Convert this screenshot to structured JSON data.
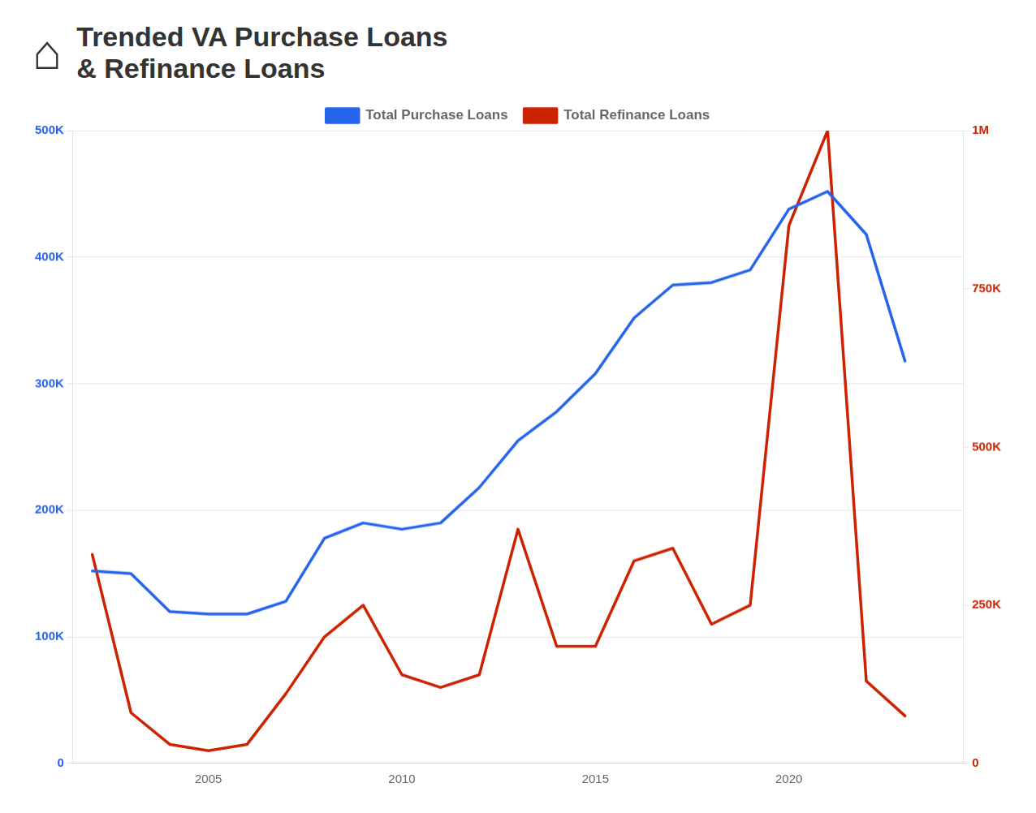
{
  "chart_data": {
    "type": "line",
    "title": [
      "Trended VA Purchase Loans",
      "& Refinance Loans"
    ],
    "annotations": [
      "⌂"
    ],
    "x": [
      2002,
      2003,
      2004,
      2005,
      2006,
      2007,
      2008,
      2009,
      2010,
      2011,
      2012,
      2013,
      2014,
      2015,
      2016,
      2017,
      2018,
      2019,
      2020,
      2021,
      2022,
      2023
    ],
    "series": [
      {
        "name": "Total Purchase Loans",
        "color": "#2563eb",
        "values": [
          152000,
          150000,
          120000,
          118000,
          118000,
          128000,
          178000,
          190000,
          185000,
          190000,
          218000,
          255000,
          278000,
          308000,
          352000,
          378000,
          380000,
          390000,
          438000,
          452000,
          418000,
          318000
        ]
      },
      {
        "name": "Total Refinance Loans",
        "color": "#cc2200",
        "axis": "y2",
        "values": [
          330000,
          80000,
          30000,
          20000,
          30000,
          110000,
          200000,
          250000,
          140000,
          120000,
          140000,
          370000,
          185000,
          185000,
          320000,
          340000,
          220000,
          250000,
          850000,
          1000000,
          130000,
          75000
        ]
      }
    ],
    "xlim": [
      2001.5,
      2024.5
    ],
    "xticks": [
      2005,
      2010,
      2015,
      2020
    ],
    "ylim": [
      0,
      500000
    ],
    "yticks": [
      0,
      {
        "value": 100000,
        "label": "100K"
      },
      {
        "value": 200000,
        "label": "200K"
      },
      {
        "value": 300000,
        "label": "300K"
      },
      {
        "value": 400000,
        "label": "400K"
      },
      {
        "value": 500000,
        "label": "500K"
      }
    ],
    "y2lim": [
      0,
      1000000
    ],
    "y2ticks": [
      0,
      {
        "value": 250000,
        "label": "250K"
      },
      {
        "value": 500000,
        "label": "500K"
      },
      {
        "value": 750000,
        "label": "750K"
      },
      {
        "value": 1000000,
        "label": "1M"
      }
    ],
    "grid": true,
    "legend": "top"
  }
}
